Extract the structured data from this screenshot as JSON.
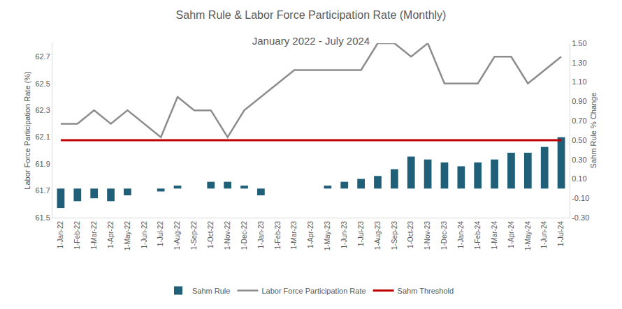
{
  "chart_data": {
    "type": "bar",
    "title": "Sahm Rule & Labor Force Participation Rate (Monthly)",
    "subtitle": "January 2022 - July 2024",
    "y_label": "Labor Force Participation Rate (%)",
    "y2_label": "Sahm Rule % Change",
    "categories": [
      "1-Jan-22",
      "1-Feb-22",
      "1-Mar-22",
      "1-Apr-22",
      "1-May-22",
      "1-Jun-22",
      "1-Jul-22",
      "1-Aug-22",
      "1-Sep-22",
      "1-Oct-22",
      "1-Nov-22",
      "1-Dec-22",
      "1-Jan-23",
      "1-Feb-23",
      "1-Mar-23",
      "1-Apr-23",
      "1-May-23",
      "1-Jun-23",
      "1-Jul-23",
      "1-Aug-23",
      "1-Sep-23",
      "1-Oct-23",
      "1-Nov-23",
      "1-Dec-23",
      "1-Jan-24",
      "1-Feb-24",
      "1-Mar-24",
      "1-Apr-24",
      "1-May-24",
      "1-Jun-24",
      "1-Jul-24"
    ],
    "series": [
      {
        "name": "Sahm Rule",
        "type": "bar",
        "axis": "y2",
        "color": "#1f5f78",
        "values": [
          -0.2,
          -0.13,
          -0.1,
          -0.13,
          -0.07,
          0,
          -0.03,
          0.03,
          0,
          0.07,
          0.07,
          0.03,
          -0.07,
          0,
          0,
          0,
          0.03,
          0.07,
          0.1,
          0.13,
          0.2,
          0.33,
          0.3,
          0.27,
          0.23,
          0.27,
          0.3,
          0.37,
          0.37,
          0.43,
          0.53
        ]
      },
      {
        "name": "Labor Force Participation Rate",
        "type": "line",
        "color": "#8c8c8c",
        "line_style": "solid",
        "values": [
          62.2,
          62.2,
          62.3,
          62.2,
          62.3,
          62.2,
          62.1,
          62.4,
          62.3,
          62.3,
          62.1,
          62.3,
          62.4,
          62.5,
          62.6,
          62.6,
          62.6,
          62.6,
          62.6,
          62.8,
          62.8,
          62.7,
          62.8,
          62.5,
          62.5,
          62.5,
          62.7,
          62.7,
          62.5,
          62.6,
          62.7
        ]
      },
      {
        "name": "Sahm Threshold",
        "type": "line",
        "axis": "y2",
        "color": "#c00000",
        "line_style": "solid",
        "values": [
          0.5,
          0.5,
          0.5,
          0.5,
          0.5,
          0.5,
          0.5,
          0.5,
          0.5,
          0.5,
          0.5,
          0.5,
          0.5,
          0.5,
          0.5,
          0.5,
          0.5,
          0.5,
          0.5,
          0.5,
          0.5,
          0.5,
          0.5,
          0.5,
          0.5,
          0.5,
          0.5,
          0.5,
          0.5,
          0.5,
          0.5
        ]
      }
    ],
    "ylim": [
      61.5,
      62.8
    ],
    "yticks": [
      61.5,
      61.7,
      61.9,
      62.1,
      62.3,
      62.5,
      62.7
    ],
    "y2lim": [
      -0.3,
      1.5
    ],
    "y2ticks": [
      {
        "value": -0.3,
        "label": "-0.30"
      },
      {
        "value": -0.1,
        "label": "-0.10"
      },
      {
        "value": 0.1,
        "label": "0.10"
      },
      {
        "value": 0.3,
        "label": "0.30"
      },
      {
        "value": 0.5,
        "label": "0.50"
      },
      {
        "value": 0.7,
        "label": "0.70"
      },
      {
        "value": 0.9,
        "label": "0.90"
      },
      {
        "value": 1.1,
        "label": "1.10"
      },
      {
        "value": 1.3,
        "label": "1.30"
      },
      {
        "value": 1.5,
        "label": "1.50"
      }
    ],
    "grid": false,
    "legend": "bottom"
  }
}
